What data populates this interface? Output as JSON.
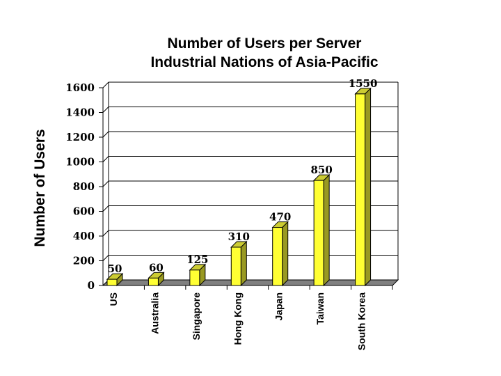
{
  "chart_data": {
    "type": "bar",
    "title": "Number of Users per Server",
    "subtitle": "Industrial Nations of Asia-Pacific",
    "ylabel": "Number of Users",
    "xlabel": "",
    "categories": [
      "US",
      "Australia",
      "Singapore",
      "Hong Kong",
      "Japan",
      "Taiwan",
      "South Korea"
    ],
    "values": [
      50,
      60,
      125,
      310,
      470,
      850,
      1550
    ],
    "data_labels": [
      "50",
      "60",
      "125",
      "310",
      "470",
      "850",
      "1550"
    ],
    "ylim": [
      0,
      1600
    ],
    "yticks": [
      "0",
      "200",
      "400",
      "600",
      "800",
      "1000",
      "1200",
      "1400",
      "1600"
    ],
    "grid": true,
    "style": "3d",
    "colors": {
      "bar_front": "#ffff33",
      "bar_side": "#999922",
      "bar_top": "#cccc33",
      "floor": "#808080",
      "grid": "#000000"
    }
  }
}
